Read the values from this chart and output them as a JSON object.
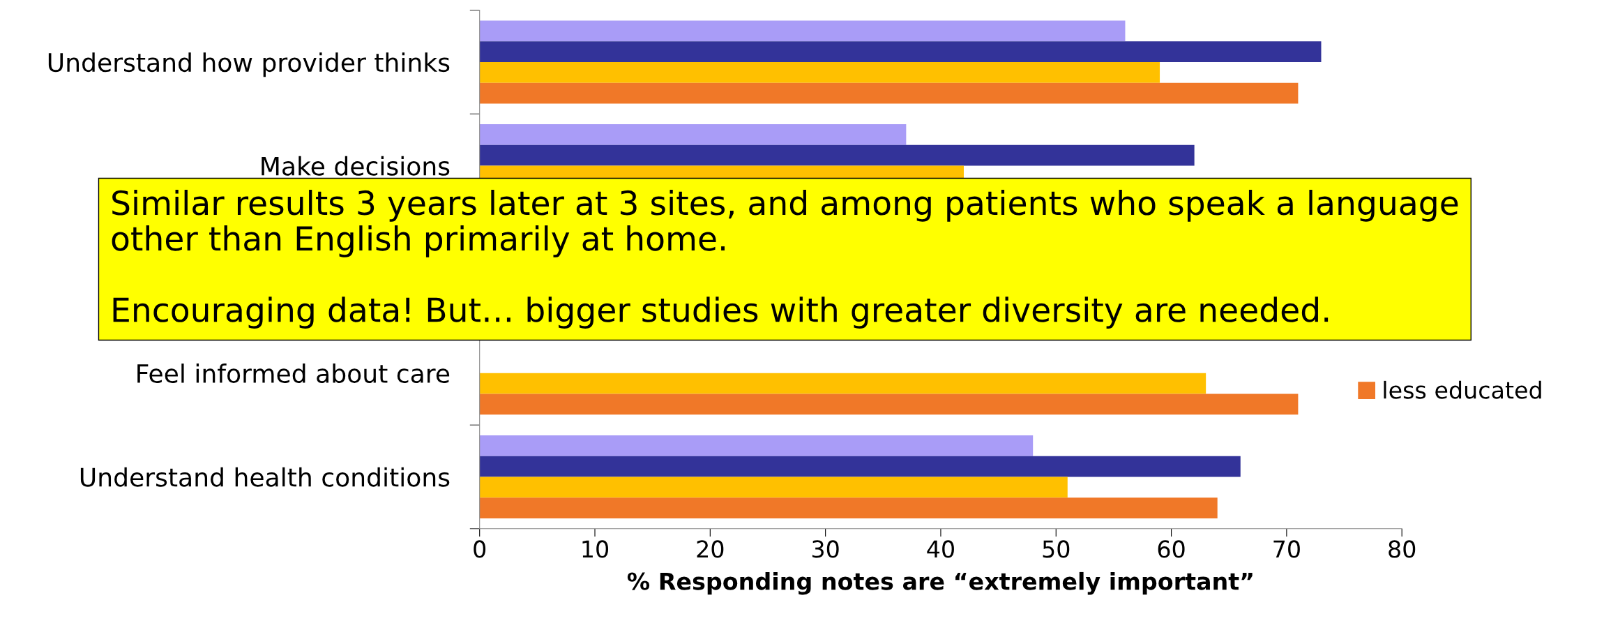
{
  "chart_data": {
    "type": "bar",
    "orientation": "horizontal",
    "xlabel": "% Responding notes are “extremely important”",
    "categories": [
      "Understand how provider thinks",
      "Make decisions",
      null,
      "Feel informed about care",
      "Understand health conditions"
    ],
    "series": [
      {
        "color": "#a99cf7",
        "values": [
          56,
          37,
          null,
          null,
          48
        ]
      },
      {
        "color": "#333399",
        "values": [
          73,
          62,
          null,
          null,
          66
        ]
      },
      {
        "color": "#ffc000",
        "values": [
          59,
          42,
          null,
          63,
          51
        ]
      },
      {
        "name": "less educated",
        "color": "#f07828",
        "values": [
          71,
          null,
          null,
          71,
          64
        ]
      }
    ],
    "xlim": [
      0,
      80
    ],
    "xticks": [
      0,
      10,
      20,
      30,
      40,
      50,
      60,
      70,
      80
    ],
    "legend": "right",
    "grid": false,
    "annotations": [
      "Similar results 3 years later at 3 sites, and among patients who speak a language\nother than English primarily at home.\n\nEncouraging data! But… bigger studies with greater diversity are needed."
    ]
  }
}
